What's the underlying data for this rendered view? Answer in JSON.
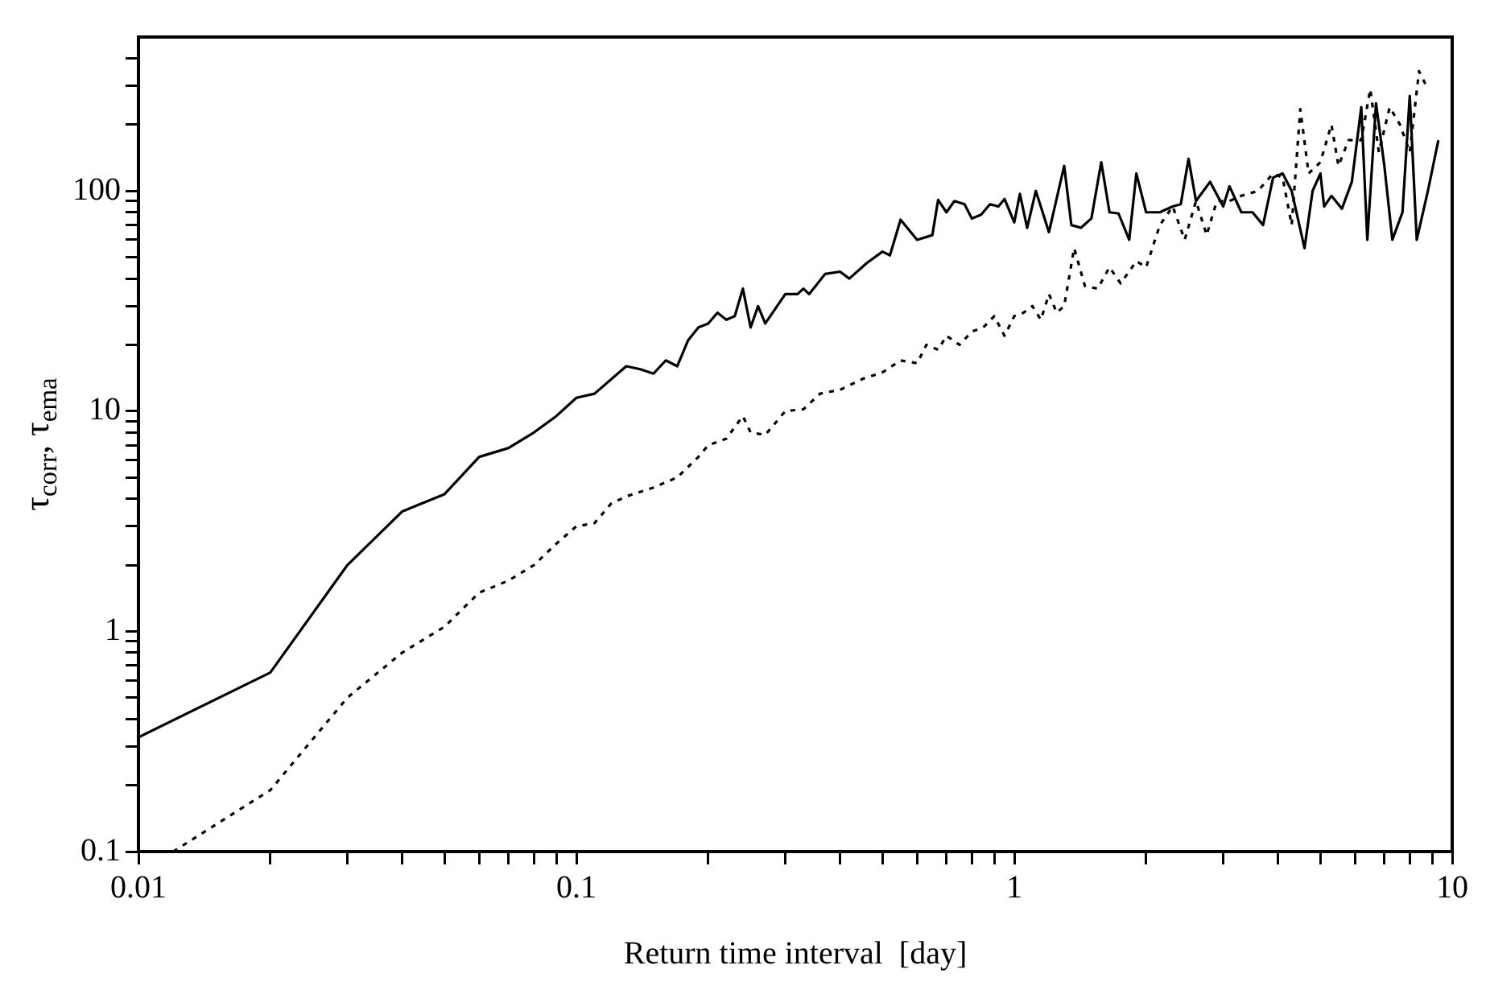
{
  "chart_data": {
    "type": "line",
    "xlabel": "Return time interval  [day]",
    "ylabel": "τ$_{corr}$, τ$_{ema}$",
    "log": "xy",
    "grid": false,
    "legend": false,
    "marker": "none",
    "xlim": [
      0.01,
      10
    ],
    "ylim": [
      0.1,
      500
    ],
    "xticks": [
      0.01,
      {
        "value": 0.02,
        "label": null
      },
      {
        "value": 0.03,
        "label": null
      },
      {
        "value": 0.04,
        "label": null
      },
      {
        "value": 0.05,
        "label": null
      },
      {
        "value": 0.06,
        "label": null
      },
      {
        "value": 0.07,
        "label": null
      },
      {
        "value": 0.08,
        "label": null
      },
      {
        "value": 0.09,
        "label": null
      },
      0.1,
      {
        "value": 0.2,
        "label": null
      },
      {
        "value": 0.3,
        "label": null
      },
      {
        "value": 0.4,
        "label": null
      },
      {
        "value": 0.5,
        "label": null
      },
      {
        "value": 0.6,
        "label": null
      },
      {
        "value": 0.7,
        "label": null
      },
      {
        "value": 0.8,
        "label": null
      },
      {
        "value": 0.9,
        "label": null
      },
      1,
      {
        "value": 2,
        "label": null
      },
      {
        "value": 3,
        "label": null
      },
      {
        "value": 4,
        "label": null
      },
      {
        "value": 5,
        "label": null
      },
      {
        "value": 6,
        "label": null
      },
      {
        "value": 7,
        "label": null
      },
      {
        "value": 8,
        "label": null
      },
      {
        "value": 9,
        "label": null
      },
      10
    ],
    "yticks": [
      0.1,
      {
        "value": 0.2,
        "label": null
      },
      {
        "value": 0.3,
        "label": null
      },
      {
        "value": 0.4,
        "label": null
      },
      {
        "value": 0.5,
        "label": null
      },
      {
        "value": 0.6,
        "label": null
      },
      {
        "value": 0.7,
        "label": null
      },
      {
        "value": 0.8,
        "label": null
      },
      {
        "value": 0.9,
        "label": null
      },
      1,
      {
        "value": 2,
        "label": null
      },
      {
        "value": 3,
        "label": null
      },
      {
        "value": 4,
        "label": null
      },
      {
        "value": 5,
        "label": null
      },
      {
        "value": 6,
        "label": null
      },
      {
        "value": 7,
        "label": null
      },
      {
        "value": 8,
        "label": null
      },
      {
        "value": 9,
        "label": null
      },
      10,
      {
        "value": 20,
        "label": null
      },
      {
        "value": 30,
        "label": null
      },
      {
        "value": 40,
        "label": null
      },
      {
        "value": 50,
        "label": null
      },
      {
        "value": 60,
        "label": null
      },
      {
        "value": 70,
        "label": null
      },
      {
        "value": 80,
        "label": null
      },
      {
        "value": 90,
        "label": null
      },
      100,
      {
        "value": 200,
        "label": null
      },
      {
        "value": 300,
        "label": null
      },
      {
        "value": 400,
        "label": null
      }
    ],
    "series": [
      {
        "color": "#000000",
        "line_style": "solid",
        "x": [
          0.01,
          0.02,
          0.03,
          0.04,
          0.05,
          0.06,
          0.07,
          0.08,
          0.09,
          0.1,
          0.11,
          0.13,
          0.14,
          0.15,
          0.16,
          0.17,
          0.18,
          0.19,
          0.2,
          0.21,
          0.22,
          0.23,
          0.24,
          0.25,
          0.26,
          0.27,
          0.3,
          0.32,
          0.33,
          0.34,
          0.37,
          0.4,
          0.42,
          0.46,
          0.5,
          0.52,
          0.55,
          0.6,
          0.65,
          0.67,
          0.7,
          0.73,
          0.77,
          0.8,
          0.84,
          0.88,
          0.92,
          0.95,
          1.0,
          1.03,
          1.07,
          1.12,
          1.2,
          1.3,
          1.35,
          1.42,
          1.5,
          1.58,
          1.65,
          1.73,
          1.83,
          1.9,
          2.0,
          2.15,
          2.3,
          2.4,
          2.5,
          2.6,
          2.8,
          3.0,
          3.1,
          3.3,
          3.5,
          3.7,
          3.9,
          4.1,
          4.3,
          4.6,
          4.8,
          5.0,
          5.1,
          5.3,
          5.6,
          5.9,
          6.2,
          6.4,
          6.7,
          7.0,
          7.3,
          7.7,
          8.0,
          8.3,
          8.8,
          9.3
        ],
        "values": [
          0.33,
          0.65,
          2.0,
          3.5,
          4.2,
          6.2,
          6.8,
          8,
          9.5,
          11.5,
          12,
          16,
          15.5,
          14.8,
          17,
          16,
          21,
          24,
          25,
          28,
          26,
          27,
          36,
          24,
          30,
          25,
          34,
          34,
          36,
          34,
          42,
          43,
          40,
          47,
          53,
          51,
          74,
          60,
          63,
          91,
          80,
          90,
          87,
          75,
          78,
          87,
          85,
          92,
          72,
          97,
          68,
          100,
          65,
          130,
          70,
          68,
          75,
          135,
          80,
          79,
          60,
          120,
          80,
          80,
          85,
          87,
          140,
          90,
          110,
          85,
          105,
          80,
          80,
          70,
          115,
          120,
          100,
          55,
          100,
          120,
          85,
          95,
          83,
          110,
          240,
          60,
          250,
          130,
          60,
          80,
          270,
          60,
          100,
          170
        ]
      },
      {
        "color": "#000000",
        "line_style": "dotted",
        "x": [
          0.012,
          0.02,
          0.03,
          0.04,
          0.05,
          0.06,
          0.07,
          0.08,
          0.09,
          0.1,
          0.11,
          0.12,
          0.13,
          0.15,
          0.17,
          0.19,
          0.2,
          0.22,
          0.24,
          0.25,
          0.27,
          0.3,
          0.33,
          0.36,
          0.4,
          0.45,
          0.5,
          0.55,
          0.6,
          0.63,
          0.67,
          0.7,
          0.75,
          0.8,
          0.85,
          0.9,
          0.95,
          1.0,
          1.05,
          1.1,
          1.15,
          1.2,
          1.25,
          1.3,
          1.37,
          1.45,
          1.55,
          1.65,
          1.75,
          1.9,
          2.0,
          2.15,
          2.3,
          2.45,
          2.6,
          2.75,
          2.9,
          3.1,
          3.3,
          3.6,
          3.9,
          4.1,
          4.3,
          4.5,
          4.7,
          5.0,
          5.3,
          5.5,
          5.8,
          6.2,
          6.5,
          6.8,
          7.2,
          7.6,
          8.0,
          8.4,
          8.8
        ],
        "values": [
          0.1,
          0.19,
          0.5,
          0.8,
          1.05,
          1.5,
          1.7,
          2.0,
          2.5,
          3.0,
          3.1,
          3.8,
          4.1,
          4.5,
          5.0,
          6.2,
          7,
          7.5,
          9.5,
          8,
          7.8,
          10,
          10.2,
          12,
          12.5,
          14,
          15,
          17,
          16.5,
          20,
          19,
          22,
          20,
          23,
          24,
          27,
          22,
          27,
          28,
          30,
          26,
          34,
          28,
          30,
          55,
          37,
          36,
          45,
          38,
          48,
          45,
          70,
          85,
          60,
          90,
          63,
          90,
          90,
          95,
          100,
          120,
          115,
          70,
          235,
          120,
          135,
          200,
          130,
          170,
          170,
          290,
          150,
          240,
          200,
          150,
          350,
          290
        ]
      }
    ]
  }
}
